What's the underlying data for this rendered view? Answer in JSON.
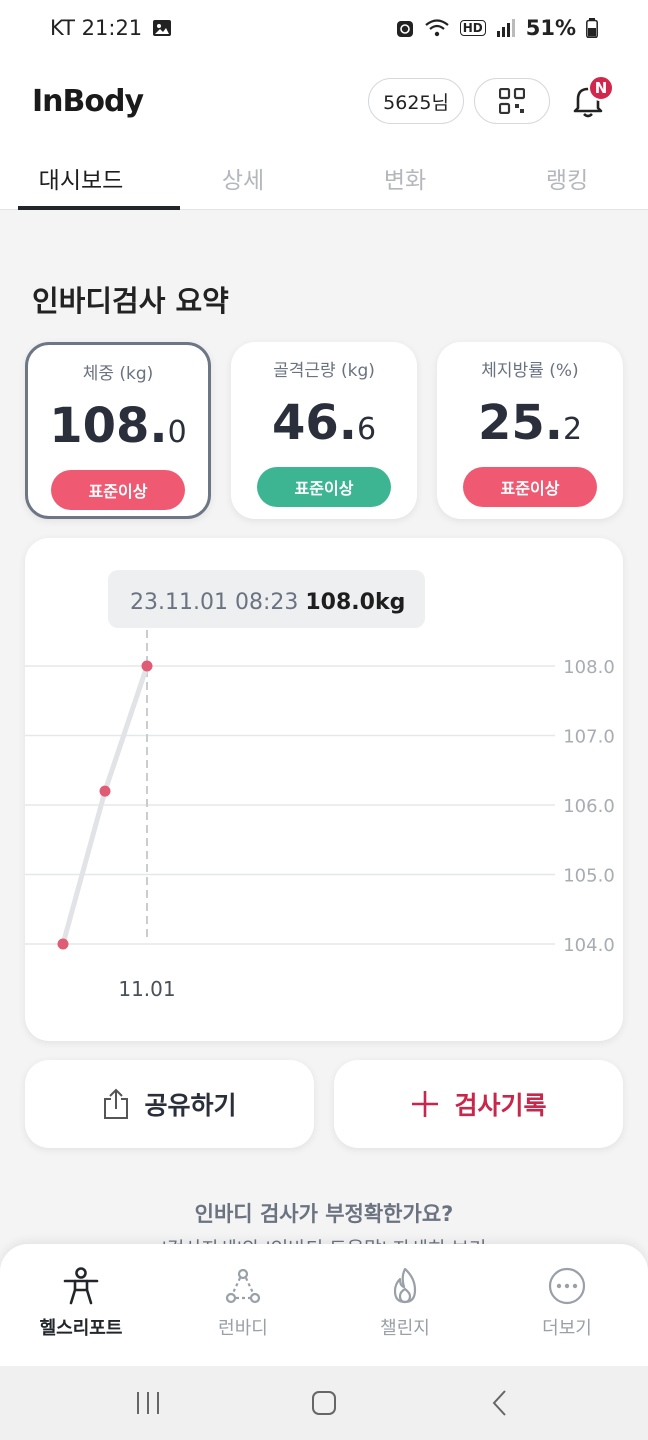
{
  "status_bar": {
    "carrier_time": "KT 21:21",
    "battery": "51%",
    "hd": "HD"
  },
  "header": {
    "logo": "InBody",
    "user": "5625님",
    "notification_badge": "N"
  },
  "tabs": [
    {
      "label": "대시보드",
      "active": true
    },
    {
      "label": "상세",
      "active": false
    },
    {
      "label": "변화",
      "active": false
    },
    {
      "label": "랭킹",
      "active": false
    }
  ],
  "summary": {
    "title": "인바디검사 요약",
    "cards": [
      {
        "label": "체중 (kg)",
        "int": "108.",
        "dec": "0",
        "badge": "표준이상",
        "badge_color": "#ef5a72",
        "selected": true
      },
      {
        "label": "골격근량 (kg)",
        "int": "46.",
        "dec": "6",
        "badge": "표준이상",
        "badge_color": "#3db593",
        "selected": false
      },
      {
        "label": "체지방률 (%)",
        "int": "25.",
        "dec": "2",
        "badge": "표준이상",
        "badge_color": "#ef5a72",
        "selected": false
      }
    ]
  },
  "chart_data": {
    "type": "line",
    "tooltip_date": "23.11.01 08:23",
    "tooltip_value": "108.0kg",
    "y_ticks": [
      "108.0",
      "107.0",
      "106.0",
      "105.0",
      "104.0"
    ],
    "ylim": [
      104.0,
      108.0
    ],
    "x_label": "11.01",
    "points": [
      104.0,
      106.2,
      108.0
    ],
    "line_color": "#e1e3e7",
    "point_color": "#e05c74"
  },
  "actions": {
    "share": "공유하기",
    "record": "검사기록"
  },
  "help": {
    "question": "인바디 검사가 부정확한가요?",
    "sub": "'검사자세'와 '인바디 도움말' 자세히 보기"
  },
  "bottom_nav": [
    {
      "label": "헬스리포트",
      "icon": "person-icon",
      "active": true
    },
    {
      "label": "런바디",
      "icon": "run-icon",
      "active": false
    },
    {
      "label": "챌린지",
      "icon": "flame-icon",
      "active": false
    },
    {
      "label": "더보기",
      "icon": "more-icon",
      "active": false
    }
  ]
}
